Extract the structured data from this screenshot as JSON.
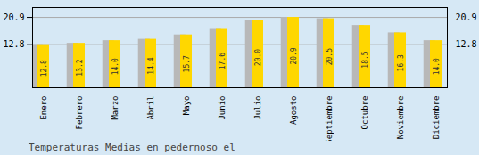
{
  "chart_data": {
    "type": "bar",
    "title": "Temperaturas Medias en pedernoso el",
    "categories": [
      "Enero",
      "Febrero",
      "Marzo",
      "Abril",
      "Mayo",
      "Junio",
      "Julio",
      "Agosto",
      "Septiembre",
      "Octubre",
      "Noviembre",
      "Diciembre"
    ],
    "values": [
      12.8,
      13.2,
      14.0,
      14.4,
      15.7,
      17.6,
      20.0,
      20.9,
      20.5,
      18.5,
      16.3,
      14.0
    ],
    "value_labels": [
      "12.8",
      "13.2",
      "14.0",
      "14.4",
      "15.7",
      "17.6",
      "20.0",
      "20.9",
      "20.5",
      "18.5",
      "16.3",
      "14.0"
    ],
    "color": "#FFD700",
    "ylim": [
      0,
      23.826
    ],
    "yticks": [
      20.9,
      12.8
    ],
    "y2lim": [
      0,
      23.826
    ],
    "y2ticks": [
      20.9,
      12.8
    ],
    "grid": true,
    "data_labels": true
  }
}
